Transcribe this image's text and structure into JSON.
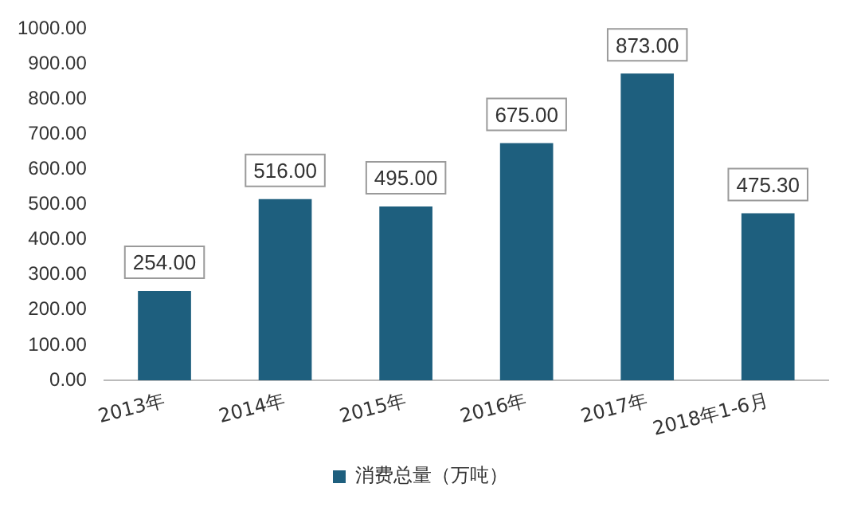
{
  "chart_data": {
    "type": "bar",
    "categories": [
      "2013年",
      "2014年",
      "2015年",
      "2016年",
      "2017年",
      "2018年1-6月"
    ],
    "series": [
      {
        "name": "消费总量（万吨）",
        "color": "#1e5f7e",
        "values": [
          254,
          516,
          495,
          675,
          873,
          475.3
        ],
        "value_labels": [
          "254.00",
          "516.00",
          "495.00",
          "675.00",
          "873.00",
          "475.30"
        ]
      }
    ],
    "ylim": [
      0,
      1000
    ],
    "yticks": [
      {
        "value": 0,
        "label": "0.00"
      },
      {
        "value": 100,
        "label": "100.00"
      },
      {
        "value": 200,
        "label": "200.00"
      },
      {
        "value": 300,
        "label": "300.00"
      },
      {
        "value": 400,
        "label": "400.00"
      },
      {
        "value": 500,
        "label": "500.00"
      },
      {
        "value": 600,
        "label": "600.00"
      },
      {
        "value": 700,
        "label": "700.00"
      },
      {
        "value": 800,
        "label": "800.00"
      },
      {
        "value": 900,
        "label": "900.00"
      },
      {
        "value": 1000,
        "label": "1000.00"
      }
    ],
    "grid": false,
    "legend": "bottom"
  }
}
